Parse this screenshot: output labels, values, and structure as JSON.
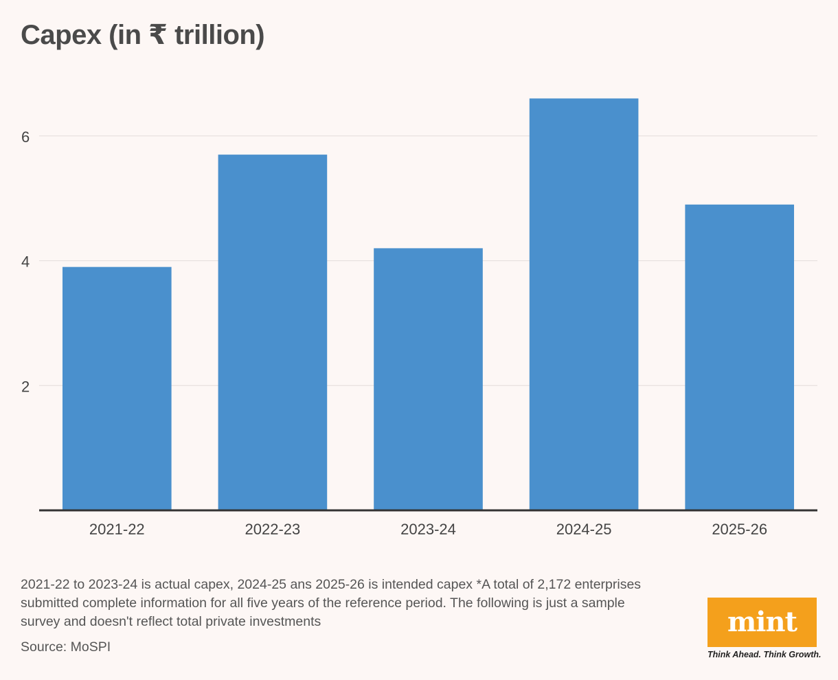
{
  "title": "Capex (in ₹ trillion)",
  "chart_data": {
    "type": "bar",
    "title": "Capex (in ₹ trillion)",
    "categories": [
      "2021-22",
      "2022-23",
      "2023-24",
      "2024-25",
      "2025-26"
    ],
    "values": [
      3.9,
      5.7,
      4.2,
      6.6,
      4.9
    ],
    "yticks": [
      2,
      4,
      6
    ],
    "ylim": [
      0,
      7
    ],
    "xlabel": "",
    "ylabel": "",
    "grid": true,
    "colors": {
      "bar": "#4a90cd",
      "grid": "#e3dcda",
      "axis": "#333333",
      "text": "#444444"
    }
  },
  "footnote": "2021-22 to 2023-24 is actual capex, 2024-25 ans 2025-26 is intended capex *A total of 2,172 enterprises submitted complete information for all five years of the reference period. The following is just a sample survey and doesn't reflect total private investments",
  "source": "Source: MoSPI",
  "logo": {
    "word": "mint",
    "tagline": "Think Ahead. Think Growth.",
    "color": "#f4a01c"
  }
}
